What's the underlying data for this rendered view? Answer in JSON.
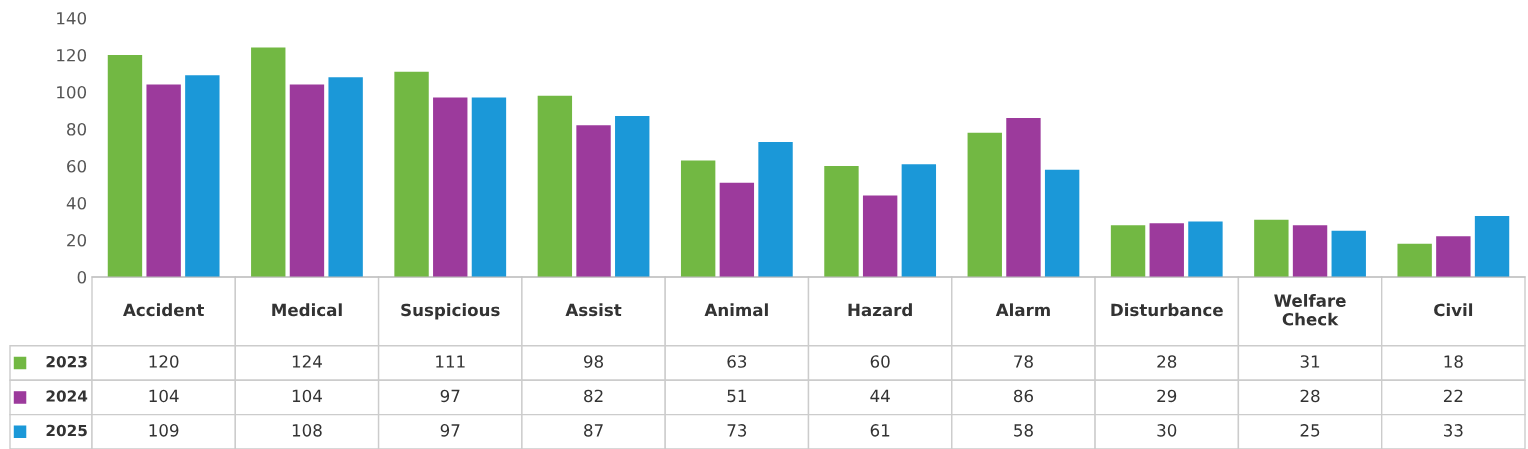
{
  "chart_data": {
    "type": "bar",
    "categories": [
      "Accident",
      "Medical",
      "Suspicious",
      "Assist",
      "Animal",
      "Hazard",
      "Alarm",
      "Disturbance",
      "Welfare\nCheck",
      "Civil"
    ],
    "series": [
      {
        "name": "2023",
        "color": "#72b843",
        "values": [
          120,
          124,
          111,
          98,
          63,
          60,
          78,
          28,
          31,
          18
        ]
      },
      {
        "name": "2024",
        "color": "#9c3a9c",
        "values": [
          104,
          104,
          97,
          82,
          51,
          44,
          86,
          29,
          28,
          22
        ]
      },
      {
        "name": "2025",
        "color": "#1b98d8",
        "values": [
          109,
          108,
          97,
          87,
          73,
          61,
          58,
          30,
          25,
          33
        ]
      }
    ],
    "ylim": [
      0,
      140
    ],
    "yticks": [
      0,
      20,
      40,
      60,
      80,
      100,
      120,
      140
    ],
    "grid": false,
    "data_labels": true,
    "legend": "bottom left"
  }
}
